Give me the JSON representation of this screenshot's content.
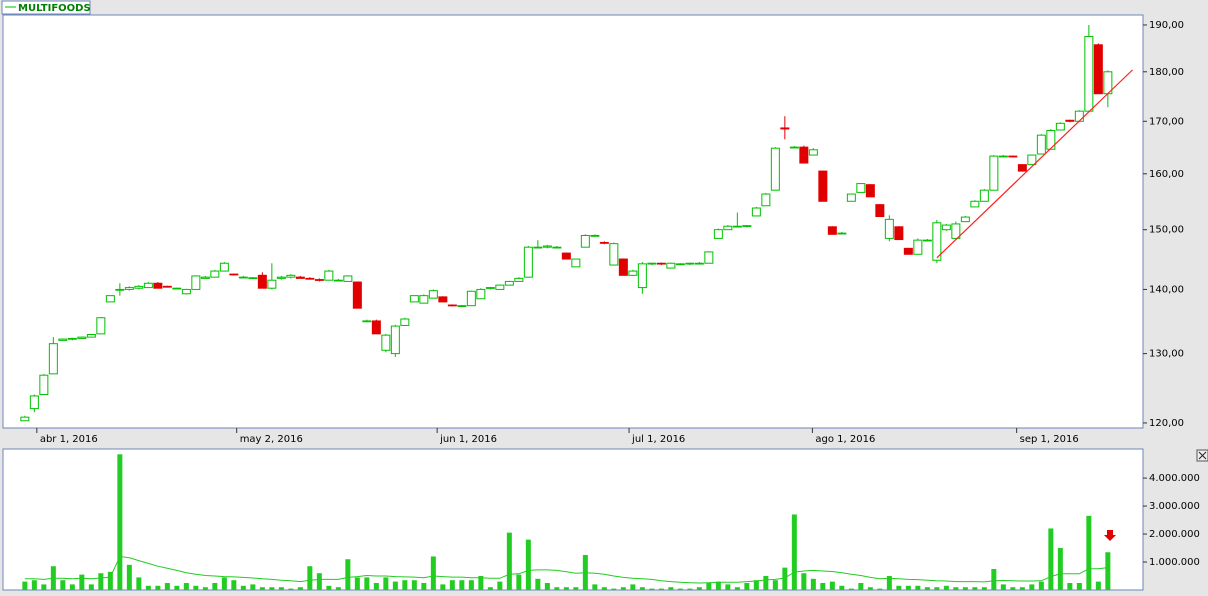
{
  "chart_data": [
    {
      "type": "candlestick",
      "log": true,
      "legend": "MULTIFOODS",
      "legend_position": "top-left",
      "up_color": "#00c000",
      "down_color": "#e00000",
      "trend_color": "#ff2020",
      "xlim": [
        -2.3,
        117.7
      ],
      "xticks": [
        {
          "value": 1.26,
          "label": "abr 1, 2016"
        },
        {
          "value": 22.3,
          "label": "may 2, 2016"
        },
        {
          "value": 43.4,
          "label": "jun 1, 2016"
        },
        {
          "value": 63.6,
          "label": "jul 1, 2016"
        },
        {
          "value": 82.9,
          "label": "ago 1, 2016"
        },
        {
          "value": 104.4,
          "label": "sep 1, 2016"
        }
      ],
      "ylim": [
        119.3,
        192.2
      ],
      "yticks": [
        {
          "value": 120,
          "label": "120,00"
        },
        {
          "value": 130,
          "label": "130,00"
        },
        {
          "value": 140,
          "label": "140,00"
        },
        {
          "value": 150,
          "label": "150,00"
        },
        {
          "value": 160,
          "label": "160,00"
        },
        {
          "value": 170,
          "label": "170,00"
        },
        {
          "value": 180,
          "label": "180,00"
        },
        {
          "value": 190,
          "label": "190,00"
        }
      ],
      "trendline": {
        "x": [
          96,
          116.6
        ],
        "y": [
          145.2,
          180.4
        ]
      },
      "ohlc": [
        [
          120.3,
          121,
          120.3,
          120.8
        ],
        [
          122,
          124,
          121.5,
          123.8
        ],
        [
          124,
          127,
          124,
          126.8
        ],
        [
          127,
          132.5,
          127,
          131.5
        ],
        [
          132,
          132.3,
          132,
          132.2
        ],
        [
          132.2,
          132.4,
          132,
          132.3
        ],
        [
          132.3,
          132.6,
          132.3,
          132.5
        ],
        [
          132.5,
          133,
          132.5,
          132.9
        ],
        [
          133,
          135.6,
          133,
          135.5
        ],
        [
          138,
          139,
          138,
          139
        ],
        [
          140,
          141,
          139,
          140
        ],
        [
          140,
          140.5,
          139.8,
          140.3
        ],
        [
          140.2,
          140.7,
          140,
          140.5
        ],
        [
          140.3,
          141.2,
          140.3,
          141
        ],
        [
          141,
          141.2,
          140.2,
          140.2
        ],
        [
          140.5,
          140.6,
          140.3,
          140.4
        ],
        [
          140.2,
          140.3,
          140,
          140.2
        ],
        [
          139.3,
          140.1,
          139.2,
          140
        ],
        [
          140,
          142.3,
          140,
          142.2
        ],
        [
          141.8,
          142.2,
          141.8,
          142
        ],
        [
          142,
          143.2,
          142,
          143
        ],
        [
          143,
          144.5,
          143,
          144.3
        ],
        [
          142.5,
          142.6,
          142.3,
          142.4
        ],
        [
          142,
          142.2,
          141.8,
          142
        ],
        [
          141.8,
          142,
          141.8,
          141.9
        ],
        [
          142.3,
          142.8,
          140.2,
          140.2
        ],
        [
          140.2,
          144.3,
          140,
          141.5
        ],
        [
          141.8,
          142.2,
          141.6,
          142
        ],
        [
          142,
          142.5,
          141.8,
          142.3
        ],
        [
          142,
          142.2,
          141.8,
          141.8
        ],
        [
          141.8,
          142,
          141.6,
          141.7
        ],
        [
          141.6,
          141.8,
          141.3,
          141.5
        ],
        [
          141.5,
          143.2,
          141.5,
          143
        ],
        [
          141.5,
          141.7,
          141.3,
          141.5
        ],
        [
          141.3,
          142.3,
          141.3,
          142.2
        ],
        [
          141.2,
          141.3,
          137,
          137
        ],
        [
          135,
          135.2,
          134.8,
          135
        ],
        [
          135,
          135.2,
          133,
          133
        ],
        [
          130.5,
          133,
          130.2,
          132.8
        ],
        [
          130,
          134.4,
          129.5,
          134.2
        ],
        [
          134.3,
          135.5,
          134.3,
          135.3
        ],
        [
          138,
          139,
          138,
          139
        ],
        [
          137.8,
          139.2,
          137.8,
          139
        ],
        [
          138.6,
          140,
          138.6,
          139.8
        ],
        [
          138.8,
          138.9,
          138,
          138
        ],
        [
          137.5,
          137.6,
          137.3,
          137.4
        ],
        [
          137.4,
          137.5,
          137.2,
          137.4
        ],
        [
          137.4,
          139.8,
          137.4,
          139.7
        ],
        [
          138.5,
          140.2,
          138.5,
          140
        ],
        [
          140.2,
          140.4,
          140,
          140.3
        ],
        [
          140,
          140.8,
          140,
          140.7
        ],
        [
          140.7,
          141.4,
          140.7,
          141.3
        ],
        [
          141.3,
          142,
          141.3,
          141.8
        ],
        [
          142,
          147.2,
          142,
          147
        ],
        [
          147,
          148.2,
          146.8,
          147
        ],
        [
          147,
          147.4,
          146.8,
          147.2
        ],
        [
          147,
          147.2,
          146.8,
          147
        ],
        [
          146,
          146.1,
          145,
          145
        ],
        [
          143.7,
          145,
          143.7,
          145
        ],
        [
          147,
          149.2,
          147,
          149
        ],
        [
          149,
          149.2,
          148.8,
          149
        ],
        [
          147.8,
          148,
          147.5,
          147.7
        ],
        [
          144,
          147.8,
          144,
          147.6
        ],
        [
          145,
          145.1,
          142.3,
          142.3
        ],
        [
          142.3,
          143.2,
          142.2,
          143
        ],
        [
          140.3,
          144.5,
          139.3,
          144.2
        ],
        [
          144.2,
          144.4,
          144,
          144.3
        ],
        [
          144.3,
          144.4,
          144,
          144.2
        ],
        [
          143.5,
          144.4,
          143.5,
          144.3
        ],
        [
          144.2,
          144.3,
          144,
          144.2
        ],
        [
          144.2,
          144.4,
          144,
          144.3
        ],
        [
          144.3,
          144.5,
          144.1,
          144.3
        ],
        [
          144.3,
          146.3,
          144.3,
          146.2
        ],
        [
          148.5,
          150.2,
          148.5,
          150
        ],
        [
          150,
          150.8,
          150,
          150.6
        ],
        [
          150.6,
          153,
          150.4,
          150.6
        ],
        [
          150.6,
          150.8,
          150.4,
          150.7
        ],
        [
          152.4,
          154,
          152.4,
          153.8
        ],
        [
          154.2,
          156.5,
          154.2,
          156.3
        ],
        [
          157,
          165,
          157,
          164.8
        ],
        [
          168.7,
          171,
          166.5,
          168.5
        ],
        [
          165,
          165.2,
          164.8,
          165
        ],
        [
          165,
          165.3,
          162,
          162
        ],
        [
          163.5,
          164.8,
          163.5,
          164.5
        ],
        [
          160.5,
          160.6,
          155,
          155
        ],
        [
          150.5,
          150.6,
          149.2,
          149.2
        ],
        [
          149.4,
          149.6,
          149.2,
          149.4
        ],
        [
          155,
          156.4,
          155,
          156.3
        ],
        [
          156.6,
          158.3,
          156.6,
          158.2
        ],
        [
          158,
          158.1,
          155.8,
          155.8
        ],
        [
          154.4,
          154.5,
          152.3,
          152.3
        ],
        [
          148.5,
          152.5,
          148,
          151.8
        ],
        [
          150.5,
          150.6,
          148.3,
          148.3
        ],
        [
          146.8,
          146.9,
          145.8,
          145.8
        ],
        [
          145.8,
          148.5,
          145.8,
          148.2
        ],
        [
          148.2,
          148.4,
          148,
          148.2
        ],
        [
          144.8,
          151.7,
          144.3,
          151.2
        ],
        [
          150,
          151,
          149.8,
          150.8
        ],
        [
          148.5,
          151.4,
          148.3,
          151
        ],
        [
          151.4,
          152.4,
          151.4,
          152.2
        ],
        [
          154,
          155.2,
          154,
          155
        ],
        [
          155,
          157.2,
          155,
          157
        ],
        [
          157,
          163.5,
          157,
          163.3
        ],
        [
          163.3,
          163.5,
          163.1,
          163.3
        ],
        [
          163.3,
          163.4,
          163.1,
          163.2
        ],
        [
          161.7,
          161.8,
          160.5,
          160.5
        ],
        [
          161.7,
          163.6,
          161.7,
          163.5
        ],
        [
          163.7,
          167.5,
          163.7,
          167.3
        ],
        [
          164.6,
          168.5,
          164.6,
          168.2
        ],
        [
          168.3,
          169.8,
          168.3,
          169.6
        ],
        [
          170.2,
          170.3,
          169.8,
          170
        ],
        [
          170,
          172.2,
          170,
          172
        ],
        [
          172,
          190,
          172,
          187.5
        ],
        [
          185.7,
          186,
          175.5,
          175.5
        ],
        [
          175.5,
          180.3,
          172.8,
          180
        ]
      ]
    },
    {
      "type": "bar",
      "color": "#22cc22",
      "line_color": "#22cc22",
      "xlim": [
        -2.3,
        117.7
      ],
      "ylim": [
        0,
        5040000
      ],
      "yticks": [
        {
          "value": 1000000,
          "label": "1.000.000"
        },
        {
          "value": 2000000,
          "label": "2.000.000"
        },
        {
          "value": 3000000,
          "label": "3.000.000"
        },
        {
          "value": 4000000,
          "label": "4.000.000"
        }
      ],
      "values": [
        300000,
        350000,
        200000,
        850000,
        350000,
        200000,
        550000,
        200000,
        600000,
        650000,
        4850000,
        900000,
        450000,
        150000,
        150000,
        250000,
        150000,
        250000,
        150000,
        100000,
        250000,
        450000,
        350000,
        150000,
        200000,
        100000,
        100000,
        100000,
        50000,
        100000,
        850000,
        600000,
        150000,
        100000,
        1100000,
        450000,
        450000,
        250000,
        450000,
        300000,
        350000,
        350000,
        250000,
        1200000,
        200000,
        350000,
        350000,
        350000,
        500000,
        100000,
        300000,
        2050000,
        550000,
        1800000,
        400000,
        250000,
        100000,
        100000,
        100000,
        1250000,
        200000,
        100000,
        50000,
        100000,
        200000,
        100000,
        50000,
        50000,
        100000,
        50000,
        50000,
        100000,
        250000,
        300000,
        200000,
        100000,
        250000,
        350000,
        500000,
        350000,
        800000,
        2700000,
        600000,
        400000,
        250000,
        300000,
        150000,
        50000,
        250000,
        100000,
        50000,
        500000,
        150000,
        150000,
        150000,
        100000,
        100000,
        150000,
        100000,
        100000,
        100000,
        100000,
        750000,
        200000,
        100000,
        100000,
        200000,
        300000,
        2200000,
        1500000,
        250000,
        250000,
        2650000,
        300000,
        1350000
      ],
      "average": [
        400000,
        400000,
        380000,
        420000,
        420000,
        400000,
        420000,
        400000,
        430000,
        460000,
        1200000,
        1150000,
        1050000,
        950000,
        850000,
        780000,
        700000,
        620000,
        560000,
        520000,
        500000,
        480000,
        470000,
        450000,
        430000,
        400000,
        380000,
        350000,
        330000,
        300000,
        350000,
        380000,
        380000,
        380000,
        450000,
        480000,
        520000,
        500000,
        500000,
        480000,
        470000,
        460000,
        440000,
        500000,
        480000,
        460000,
        460000,
        440000,
        440000,
        420000,
        420000,
        560000,
        580000,
        700000,
        720000,
        720000,
        700000,
        650000,
        600000,
        620000,
        600000,
        560000,
        500000,
        450000,
        420000,
        400000,
        380000,
        330000,
        300000,
        280000,
        260000,
        250000,
        260000,
        280000,
        280000,
        280000,
        300000,
        320000,
        360000,
        380000,
        430000,
        640000,
        680000,
        700000,
        680000,
        660000,
        620000,
        560000,
        520000,
        450000,
        400000,
        420000,
        400000,
        380000,
        370000,
        350000,
        330000,
        320000,
        300000,
        300000,
        300000,
        290000,
        330000,
        340000,
        330000,
        320000,
        320000,
        330000,
        480000,
        580000,
        580000,
        580000,
        760000,
        760000,
        800000
      ]
    }
  ]
}
